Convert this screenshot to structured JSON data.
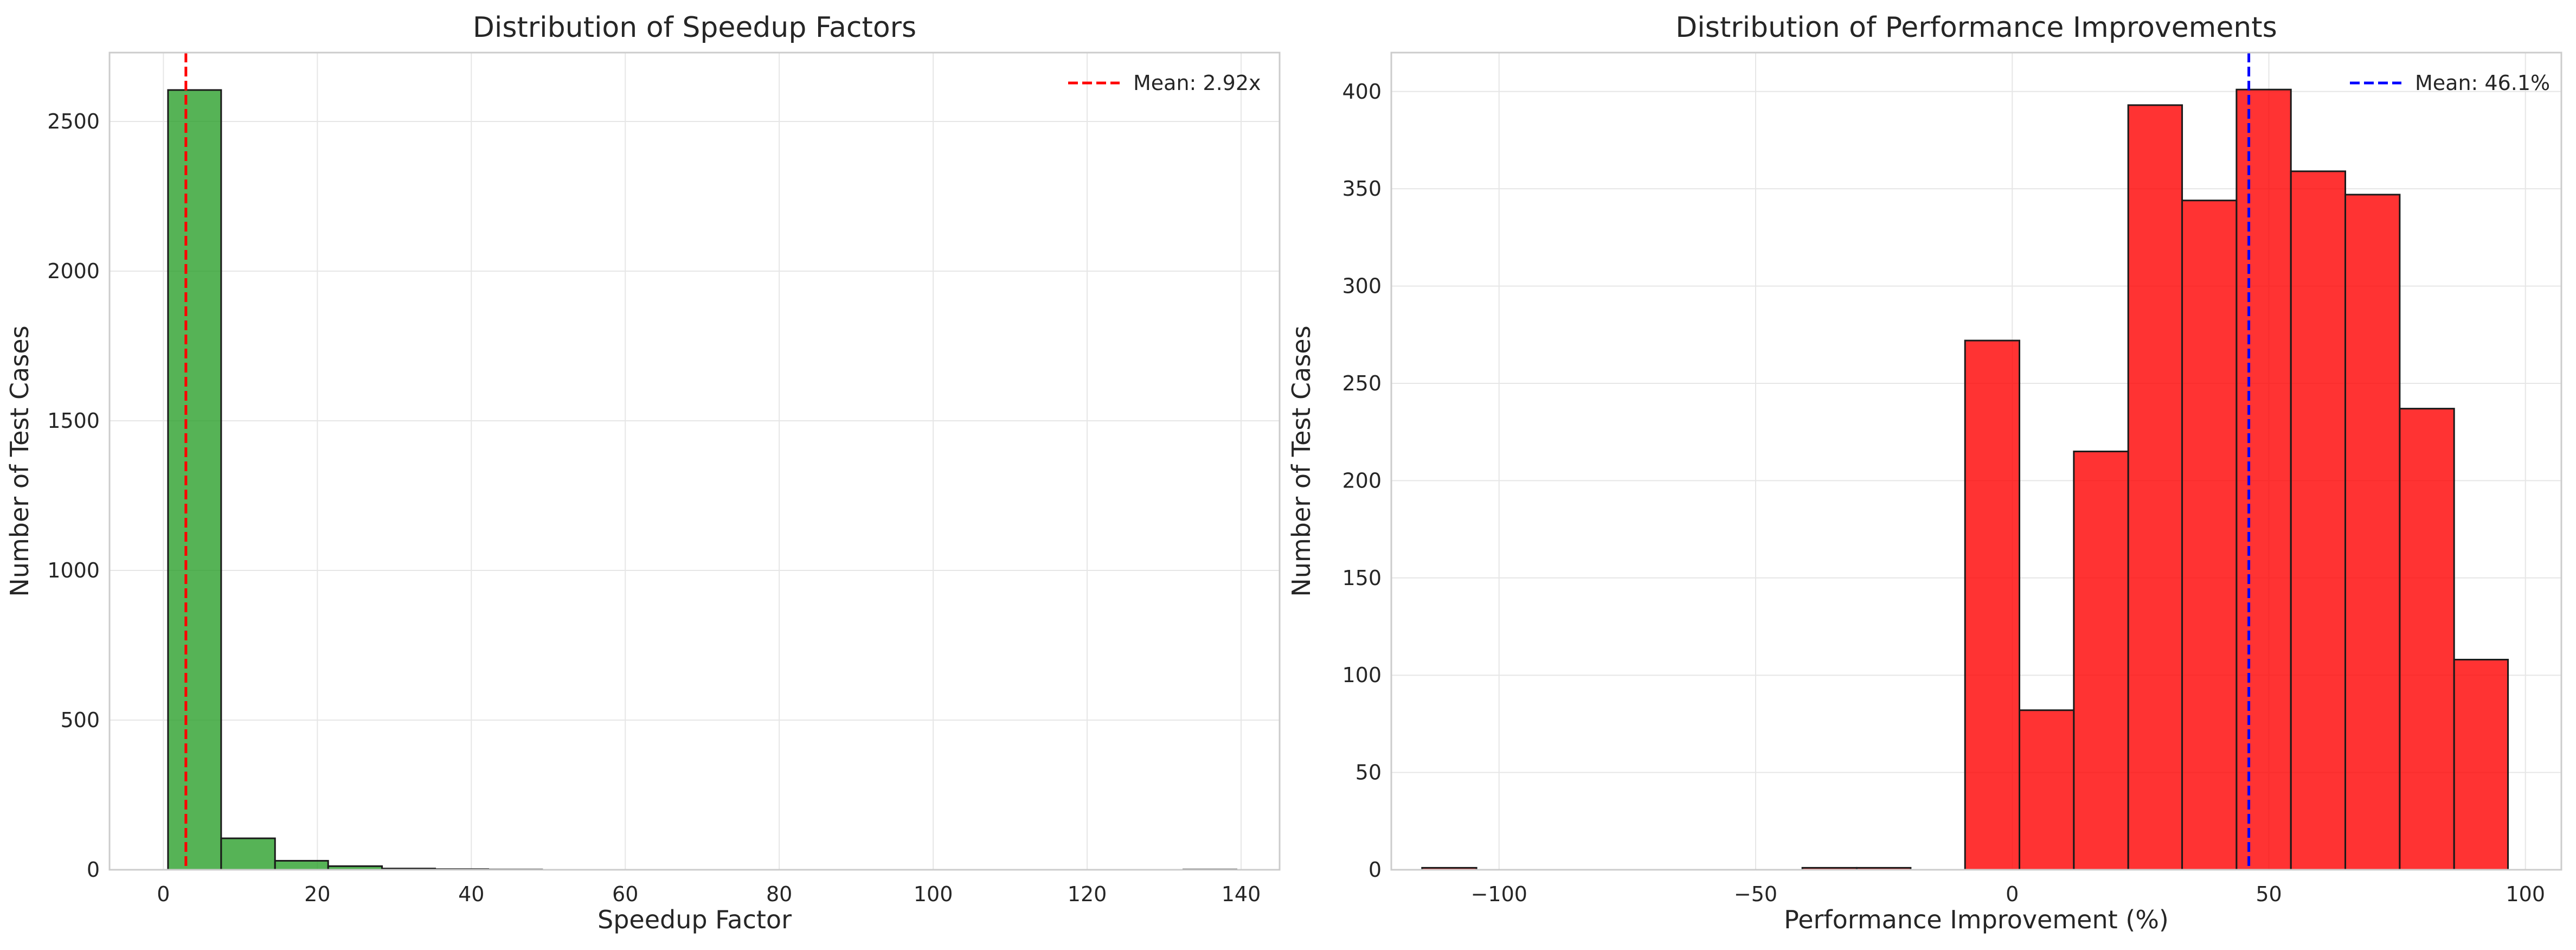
{
  "chart_data": [
    {
      "type": "bar",
      "title": "Distribution of Speedup Factors",
      "xlabel": "Speedup Factor",
      "ylabel": "Number of Test Cases",
      "xlim": [
        -7,
        145
      ],
      "ylim": [
        0,
        2730
      ],
      "xticks": [
        0,
        20,
        40,
        60,
        80,
        100,
        120,
        140
      ],
      "yticks": [
        0,
        500,
        1000,
        1500,
        2000,
        2500
      ],
      "bin_edges": [
        0.6,
        7.5,
        14.5,
        21.4,
        28.4,
        35.3,
        42.2,
        49.2,
        56.1,
        63.1,
        70.0,
        76.9,
        83.9,
        90.8,
        97.8,
        104.7,
        111.6,
        118.6,
        125.5,
        132.5,
        139.4
      ],
      "counts": [
        2605,
        105,
        30,
        12,
        4,
        2,
        1,
        0,
        0,
        0,
        0,
        0,
        0,
        0,
        0,
        0,
        0,
        0,
        0,
        1
      ],
      "bar_color": "#2ca02c",
      "mean": {
        "value": 2.92,
        "label": "Mean: 2.92x",
        "color": "#ff0000"
      },
      "grid": true,
      "legend_position": "top-right"
    },
    {
      "type": "bar",
      "title": "Distribution of Performance Improvements",
      "xlabel": "Performance Improvement (%)",
      "ylabel": "Number of Test Cases",
      "xlim": [
        -121,
        107
      ],
      "ylim": [
        0,
        420
      ],
      "xticks": [
        -100,
        -50,
        0,
        50,
        100
      ],
      "xtick_labels": [
        "−100",
        "−50",
        "0",
        "50",
        "100"
      ],
      "yticks": [
        0,
        50,
        100,
        150,
        200,
        250,
        300,
        350,
        400
      ],
      "bin_edges": [
        -115.0,
        -104.4,
        -93.8,
        -83.3,
        -72.7,
        -62.1,
        -51.5,
        -40.9,
        -30.3,
        -19.8,
        -9.2,
        1.4,
        12.0,
        22.6,
        33.1,
        43.7,
        54.3,
        64.9,
        75.5,
        86.1,
        96.6
      ],
      "counts": [
        1,
        0,
        0,
        0,
        0,
        0,
        0,
        1,
        1,
        0,
        272,
        82,
        215,
        393,
        344,
        401,
        359,
        347,
        237,
        108
      ],
      "bar_color": "#ff0000",
      "mean": {
        "value": 46.1,
        "label": "Mean: 46.1%",
        "color": "#0000ff"
      },
      "grid": true,
      "legend_position": "top-right"
    }
  ]
}
